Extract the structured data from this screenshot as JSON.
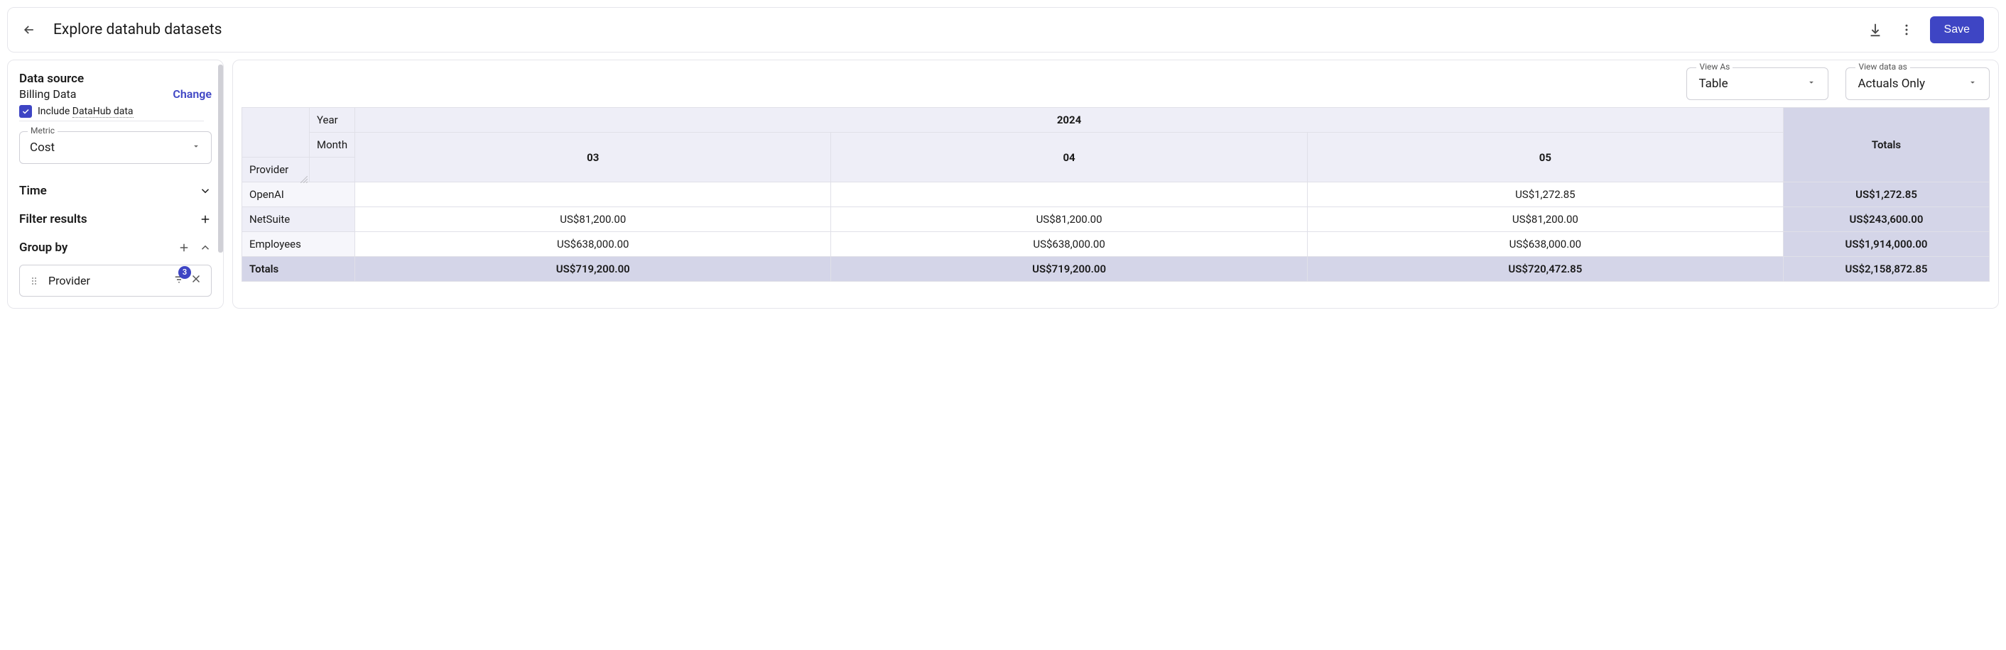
{
  "header": {
    "title": "Explore datahub datasets",
    "save_label": "Save"
  },
  "sidebar": {
    "data_source_label": "Data source",
    "data_source_name": "Billing Data",
    "change_label": "Change",
    "include_datahub_label_prefix": "Include ",
    "include_datahub_label_mid": "DataHub data",
    "include_datahub_checked": true,
    "metric_label": "Metric",
    "metric_value": "Cost",
    "time_label": "Time",
    "filter_label": "Filter results",
    "groupby_label": "Group by",
    "group_chip_label": "Provider",
    "group_chip_badge": "3"
  },
  "controls": {
    "view_as_label": "View As",
    "view_as_value": "Table",
    "view_data_as_label": "View data as",
    "view_data_as_value": "Actuals Only"
  },
  "table": {
    "year_label": "Year",
    "month_label": "Month",
    "provider_label": "Provider",
    "totals_label": "Totals",
    "year_value": "2024",
    "months": [
      "03",
      "04",
      "05"
    ],
    "rows": [
      {
        "name": "OpenAI",
        "values": [
          "",
          "",
          "US$1,272.85"
        ],
        "total": "US$1,272.85"
      },
      {
        "name": "NetSuite",
        "values": [
          "US$81,200.00",
          "US$81,200.00",
          "US$81,200.00"
        ],
        "total": "US$243,600.00"
      },
      {
        "name": "Employees",
        "values": [
          "US$638,000.00",
          "US$638,000.00",
          "US$638,000.00"
        ],
        "total": "US$1,914,000.00"
      }
    ],
    "totals_row": {
      "values": [
        "US$719,200.00",
        "US$719,200.00",
        "US$720,472.85"
      ],
      "total": "US$2,158,872.85"
    }
  },
  "colors": {
    "primary": "#3e45c4",
    "header_bg": "#eeeef7",
    "totals_bg": "#d4d5e8",
    "border": "#e6e6eb"
  }
}
